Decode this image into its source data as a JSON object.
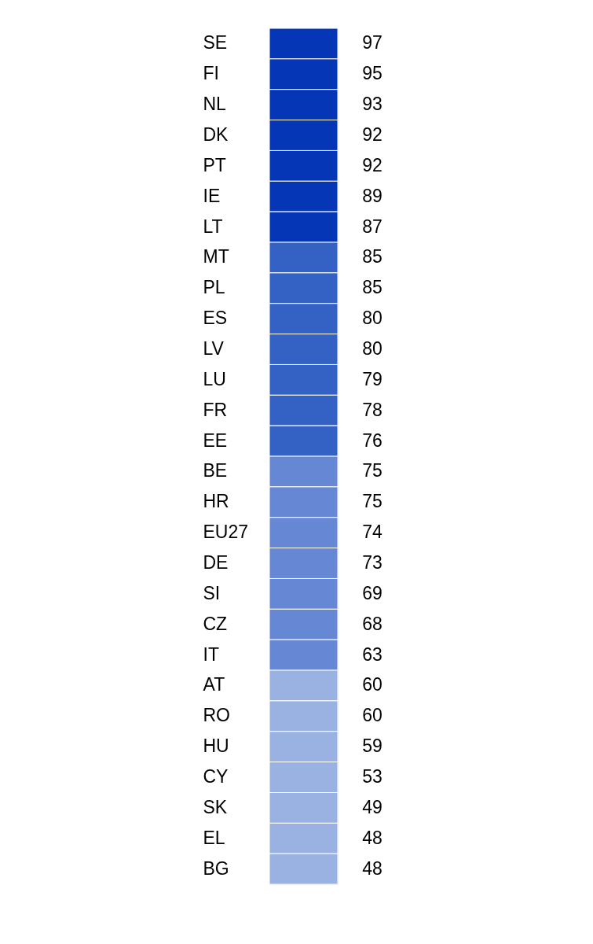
{
  "chart_data": {
    "type": "other",
    "categories": [
      "SE",
      "FI",
      "NL",
      "DK",
      "PT",
      "IE",
      "LT",
      "MT",
      "PL",
      "ES",
      "LV",
      "LU",
      "FR",
      "EE",
      "BE",
      "HR",
      "EU27",
      "DE",
      "SI",
      "CZ",
      "IT",
      "AT",
      "RO",
      "HU",
      "CY",
      "SK",
      "EL",
      "BG"
    ],
    "values": [
      97,
      95,
      93,
      92,
      92,
      89,
      87,
      85,
      85,
      80,
      80,
      79,
      78,
      76,
      75,
      75,
      74,
      73,
      69,
      68,
      63,
      60,
      60,
      59,
      53,
      49,
      48,
      48
    ],
    "colors": [
      "#0536b5",
      "#0536b5",
      "#0536b5",
      "#0536b5",
      "#0536b5",
      "#0536b5",
      "#0536b5",
      "#3461c4",
      "#3461c4",
      "#3461c4",
      "#3461c4",
      "#3461c4",
      "#3461c4",
      "#3461c4",
      "#6688d4",
      "#6688d4",
      "#6688d4",
      "#6688d4",
      "#6688d4",
      "#6688d4",
      "#6688d4",
      "#99b2e1",
      "#99b2e1",
      "#99b2e1",
      "#99b2e1",
      "#99b2e1",
      "#99b2e1",
      "#99b2e1"
    ],
    "data_labels": true
  }
}
